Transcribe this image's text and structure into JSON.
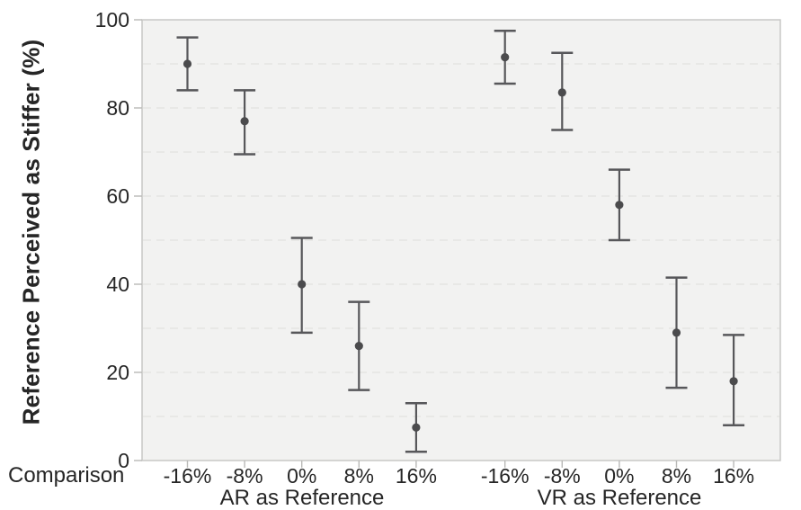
{
  "chart_data": {
    "type": "scatter",
    "ylabel": "Reference Perceived as Stiffer (%)",
    "xlabel": "Comparison",
    "ylim": [
      0,
      100
    ],
    "yticks": [
      0,
      20,
      40,
      60,
      80,
      100
    ],
    "grid": {
      "horizontal_every": 10,
      "style": "dashed",
      "shown": true
    },
    "legend_position": "none",
    "categories": [
      "-16%",
      "-8%",
      "0%",
      "8%",
      "16%"
    ],
    "series": [
      {
        "name": "AR as Reference",
        "means": [
          90,
          77,
          40,
          26,
          7.5
        ],
        "ci_low": [
          84,
          69.5,
          29,
          16,
          2
        ],
        "ci_high": [
          96,
          84,
          50.5,
          36,
          13
        ]
      },
      {
        "name": "VR as Reference",
        "means": [
          91.5,
          83.5,
          58,
          29,
          18
        ],
        "ci_low": [
          85.5,
          75,
          50,
          16.5,
          8
        ],
        "ci_high": [
          97.5,
          92.5,
          66,
          41.5,
          28.5
        ]
      }
    ],
    "colors": {
      "background": "#ffffff",
      "plot_background": "#f2f2f1",
      "plot_border": "#c5c5c3",
      "gridline": "#e3e3e0",
      "tick": "#b9b9b7",
      "marker": "#4b4b4d",
      "error_bar": "#57575a",
      "text": "#262626"
    }
  }
}
